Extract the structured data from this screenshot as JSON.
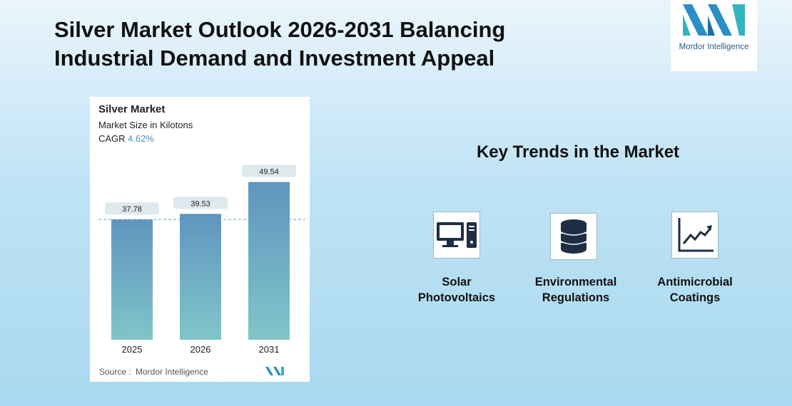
{
  "header": {
    "title": "Silver Market Outlook 2026-2031 Balancing Industrial Demand and Investment Appeal",
    "logo": "Mordor Intelligence"
  },
  "chart_data": {
    "type": "bar",
    "title": "Silver Market",
    "subtitle": "Market Size in Kilotons",
    "cagr_label": "CAGR",
    "cagr_value": "4.62%",
    "categories": [
      "2025",
      "2026",
      "2031"
    ],
    "values": [
      37.78,
      39.53,
      49.54
    ],
    "source_label": "Source :",
    "source": "Mordor Intelligence"
  },
  "trends": {
    "title": "Key Trends in the Market",
    "items": [
      "Solar Photovoltaics",
      "Environmental Regulations",
      "Antimicrobial Coatings"
    ]
  }
}
